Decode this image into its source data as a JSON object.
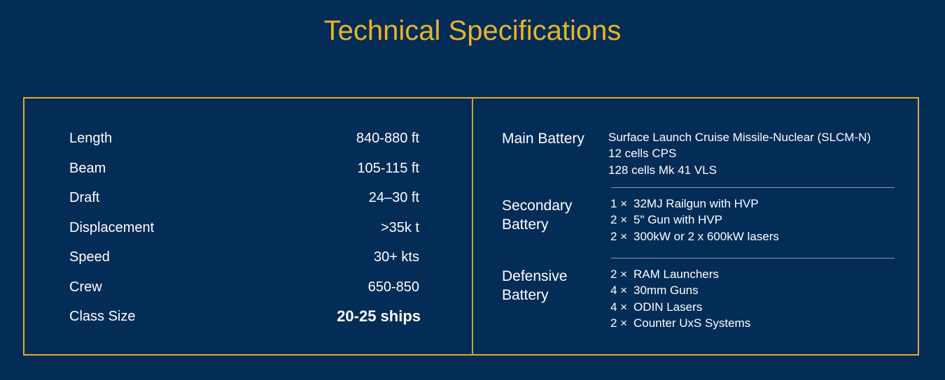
{
  "title": "Technical Specifications",
  "specs": {
    "rows": [
      {
        "label": "Length",
        "value": "840-880 ft"
      },
      {
        "label": "Beam",
        "value": "105-115 ft"
      },
      {
        "label": "Draft",
        "value": "24–30 ft"
      },
      {
        "label": "Displacement",
        "value": ">35k t"
      },
      {
        "label": "Speed",
        "value": "30+ kts"
      },
      {
        "label": "Crew",
        "value": "650-850"
      },
      {
        "label": "Class Size",
        "value": "20-25 ships"
      }
    ]
  },
  "armament": {
    "sections": [
      {
        "name": "Main Battery",
        "lines": [
          {
            "text": "Surface Launch Cruise Missile-Nuclear (SLCM-N)"
          },
          {
            "text": "12 cells CPS"
          },
          {
            "text": "128 cells Mk 41 VLS"
          }
        ]
      },
      {
        "name": "Secondary Battery",
        "lines": [
          {
            "qty": "1 ×",
            "text": "32MJ Railgun with HVP"
          },
          {
            "qty": "2 ×",
            "text": "5\" Gun with HVP"
          },
          {
            "qty": "2 ×",
            "text": "300kW or 2 x 600kW lasers"
          }
        ]
      },
      {
        "name": "Defensive Battery",
        "lines": [
          {
            "qty": "2 ×",
            "text": "RAM Launchers"
          },
          {
            "qty": "4 ×",
            "text": "30mm Guns"
          },
          {
            "qty": "4 ×",
            "text": "ODIN Lasers"
          },
          {
            "qty": "2 ×",
            "text": "Counter UxS Systems"
          }
        ]
      }
    ]
  }
}
